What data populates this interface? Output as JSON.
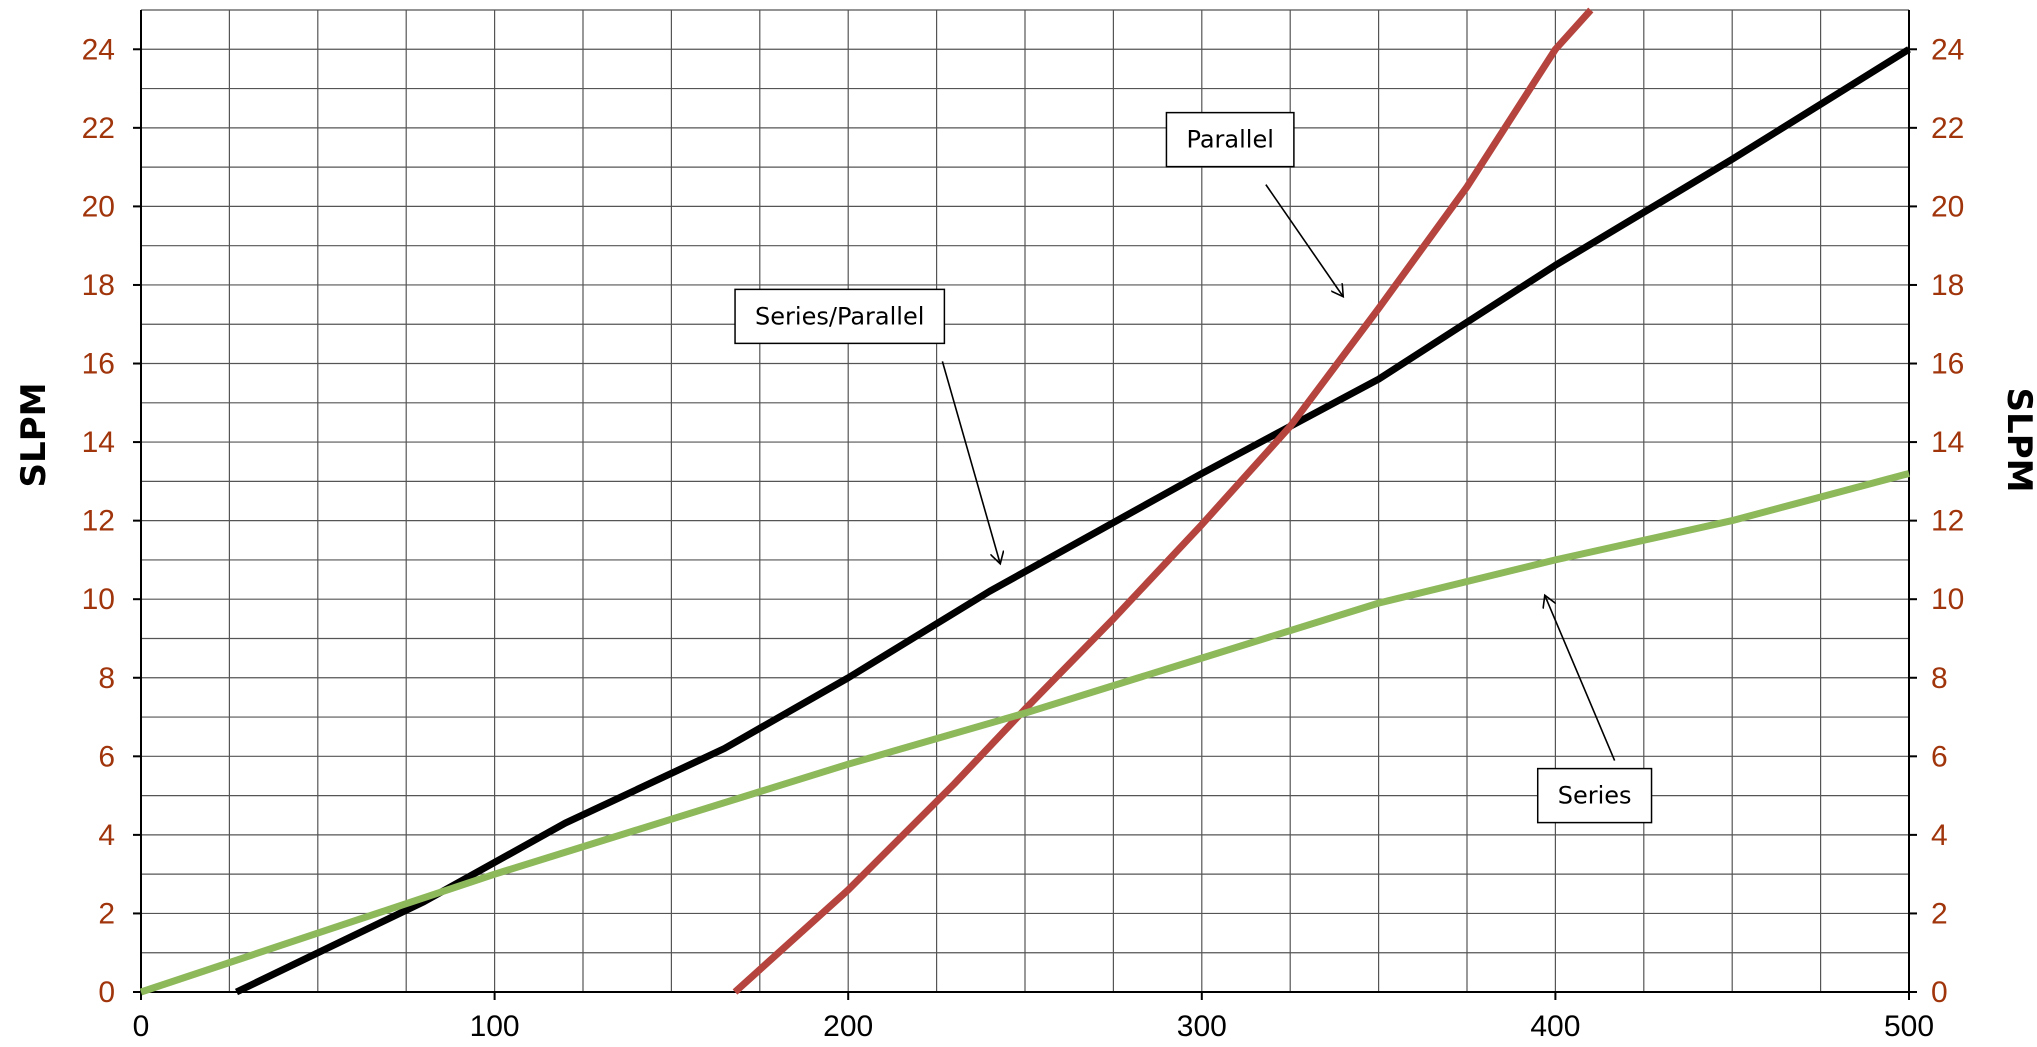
{
  "chart_data": {
    "type": "line",
    "title": "",
    "xlabel": "",
    "ylabel": "SLPM",
    "y2label": "SLPM",
    "xlim": [
      0,
      500
    ],
    "ylim": [
      0,
      25
    ],
    "x_ticks": [
      "0",
      "100",
      "200",
      "300",
      "400",
      "500"
    ],
    "y_ticks": [
      "0",
      "2",
      "4",
      "6",
      "8",
      "10",
      "12",
      "14",
      "16",
      "18",
      "20",
      "22",
      "24"
    ],
    "grid": true,
    "legend": "none",
    "series": [
      {
        "name": "Series/Parallel",
        "color": "#000000",
        "x": [
          27,
          80,
          120,
          165,
          200,
          240,
          300,
          350,
          400,
          450,
          500
        ],
        "y": [
          0,
          2.3,
          4.3,
          6.2,
          8.0,
          10.2,
          13.2,
          15.6,
          18.5,
          21.2,
          24.0
        ]
      },
      {
        "name": "Parallel",
        "color": "#b5443e",
        "x": [
          168,
          200,
          230,
          250,
          275,
          300,
          325,
          350,
          375,
          400,
          410
        ],
        "y": [
          0,
          2.6,
          5.3,
          7.2,
          9.5,
          11.9,
          14.4,
          17.4,
          20.5,
          24.0,
          25.0
        ]
      },
      {
        "name": "Series",
        "color": "#8db95a",
        "x": [
          0,
          50,
          100,
          150,
          200,
          250,
          300,
          350,
          400,
          450,
          500
        ],
        "y": [
          0,
          1.5,
          3.0,
          4.4,
          5.8,
          7.1,
          8.5,
          9.9,
          11.0,
          12.0,
          13.2
        ]
      }
    ],
    "annotations": [
      {
        "text": "Parallel",
        "x": 290,
        "y": 21.7,
        "arrow_to": [
          340,
          17.7
        ]
      },
      {
        "text": "Series/Parallel",
        "x": 168,
        "y": 17.2,
        "arrow_to": [
          243,
          10.9
        ]
      },
      {
        "text": "Series",
        "x": 395,
        "y": 5.0,
        "arrow_to": [
          397,
          10.1
        ]
      }
    ]
  }
}
